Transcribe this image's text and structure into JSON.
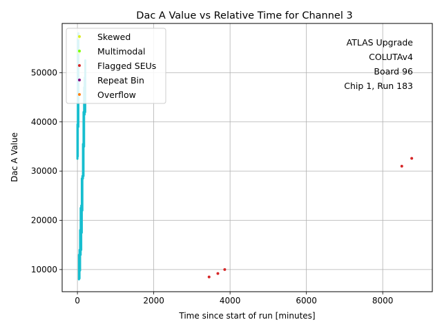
{
  "chart_data": {
    "type": "scatter",
    "title": "Dac A Value vs Relative Time for Channel 3",
    "xlabel": "Time since start of run [minutes]",
    "ylabel": "Dac A Value",
    "xlim": [
      -400,
      9300
    ],
    "ylim": [
      5500,
      60000
    ],
    "xticks": [
      0,
      2000,
      4000,
      6000,
      8000
    ],
    "yticks": [
      10000,
      20000,
      30000,
      40000,
      50000
    ],
    "xtick_labels": [
      "0",
      "2000",
      "4000",
      "6000",
      "8000"
    ],
    "ytick_labels": [
      "10000",
      "20000",
      "30000",
      "40000",
      "50000"
    ],
    "grid": true,
    "legend_position": "top-left",
    "annotation_lines": [
      "ATLAS Upgrade",
      "COLUTAv4",
      "Board 96",
      "Chip 1, Run 183"
    ],
    "main_series": {
      "color": "#17becf",
      "segments": [
        {
          "x": 0,
          "y_min": 32500,
          "y_max": 39500
        },
        {
          "x": 10,
          "y_min": 33000,
          "y_max": 57000
        },
        {
          "x": 25,
          "y_min": 39000,
          "y_max": 58000
        },
        {
          "x": 40,
          "y_min": 8000,
          "y_max": 13000
        },
        {
          "x": 55,
          "y_min": 8200,
          "y_max": 14000
        },
        {
          "x": 70,
          "y_min": 9800,
          "y_max": 18000
        },
        {
          "x": 85,
          "y_min": 13000,
          "y_max": 22500
        },
        {
          "x": 100,
          "y_min": 14000,
          "y_max": 23000
        },
        {
          "x": 115,
          "y_min": 17500,
          "y_max": 28500
        },
        {
          "x": 130,
          "y_min": 22000,
          "y_max": 29000
        },
        {
          "x": 145,
          "y_min": 28500,
          "y_max": 35500
        },
        {
          "x": 160,
          "y_min": 29000,
          "y_max": 42000
        },
        {
          "x": 175,
          "y_min": 35000,
          "y_max": 47000
        },
        {
          "x": 190,
          "y_min": 41500,
          "y_max": 49000
        },
        {
          "x": 205,
          "y_min": 42000,
          "y_max": 52500
        }
      ]
    },
    "series": [
      {
        "name": "Skewed",
        "color": "#ddee22",
        "points": [
          {
            "x": 40,
            "y": 57000
          }
        ]
      },
      {
        "name": "Multimodal",
        "color": "#7fff00",
        "points": [
          {
            "x": 40,
            "y": 54000
          }
        ]
      },
      {
        "name": "Flagged SEUs",
        "color": "#d62728",
        "points": [
          {
            "x": 3450,
            "y": 8500
          },
          {
            "x": 3680,
            "y": 9200
          },
          {
            "x": 3860,
            "y": 10000
          },
          {
            "x": 8500,
            "y": 31000
          },
          {
            "x": 8760,
            "y": 32600
          }
        ]
      },
      {
        "name": "Repeat Bin",
        "color": "#800080",
        "points": []
      },
      {
        "name": "Overflow",
        "color": "#ff7f0e",
        "points": []
      }
    ]
  }
}
